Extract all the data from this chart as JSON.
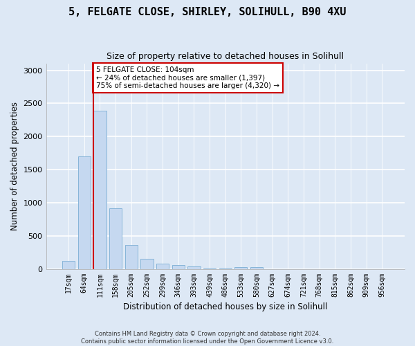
{
  "title_line1": "5, FELGATE CLOSE, SHIRLEY, SOLIHULL, B90 4XU",
  "title_line2": "Size of property relative to detached houses in Solihull",
  "xlabel": "Distribution of detached houses by size in Solihull",
  "ylabel": "Number of detached properties",
  "footnote": "Contains HM Land Registry data © Crown copyright and database right 2024.\nContains public sector information licensed under the Open Government Licence v3.0.",
  "bar_color": "#c5d8f0",
  "bar_edge_color": "#7aadd4",
  "categories": [
    "17sqm",
    "64sqm",
    "111sqm",
    "158sqm",
    "205sqm",
    "252sqm",
    "299sqm",
    "346sqm",
    "393sqm",
    "439sqm",
    "486sqm",
    "533sqm",
    "580sqm",
    "627sqm",
    "674sqm",
    "721sqm",
    "768sqm",
    "815sqm",
    "862sqm",
    "909sqm",
    "956sqm"
  ],
  "values": [
    120,
    1700,
    2390,
    910,
    360,
    150,
    80,
    55,
    40,
    5,
    5,
    30,
    30,
    0,
    0,
    0,
    0,
    0,
    0,
    0,
    0
  ],
  "ylim": [
    0,
    3100
  ],
  "yticks": [
    0,
    500,
    1000,
    1500,
    2000,
    2500,
    3000
  ],
  "property_label": "5 FELGATE CLOSE: 104sqm",
  "pct_smaller": 24,
  "count_smaller": 1397,
  "pct_larger": 75,
  "count_larger": 4320,
  "vline_color": "#cc0000",
  "annotation_box_color": "#cc0000",
  "fig_bg_color": "#dde8f5",
  "ax_bg_color": "#dde8f5",
  "grid_color": "#ffffff"
}
